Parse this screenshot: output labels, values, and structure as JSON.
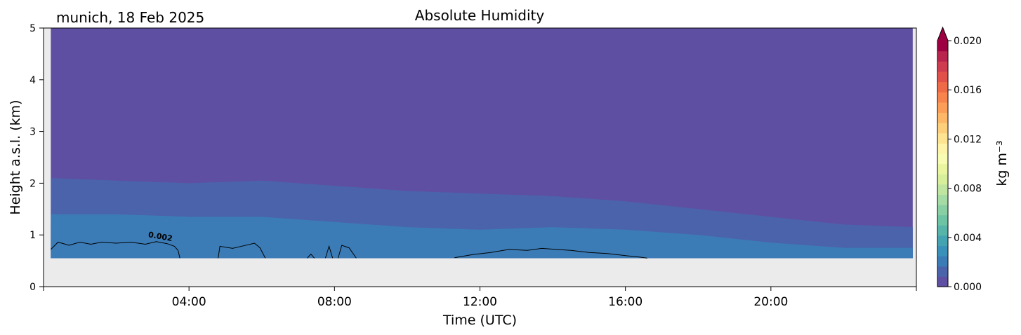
{
  "header": {
    "station_label": "munich, 18 Feb 2025",
    "title": "Absolute Humidity"
  },
  "chart_data": {
    "type": "heatmap",
    "title": "Absolute Humidity",
    "xlabel": "Time (UTC)",
    "ylabel": "Height a.s.l. (km)",
    "xlim": [
      0,
      24
    ],
    "ylim": [
      0,
      5
    ],
    "x_ticks": [
      {
        "value": 4,
        "label": "04:00"
      },
      {
        "value": 8,
        "label": "08:00"
      },
      {
        "value": 12,
        "label": "12:00"
      },
      {
        "value": 16,
        "label": "16:00"
      },
      {
        "value": 20,
        "label": "20:00"
      }
    ],
    "y_ticks": [
      {
        "value": 0,
        "label": "0"
      },
      {
        "value": 1,
        "label": "1"
      },
      {
        "value": 2,
        "label": "2"
      },
      {
        "value": 3,
        "label": "3"
      },
      {
        "value": 4,
        "label": "4"
      },
      {
        "value": 5,
        "label": "5"
      }
    ],
    "data_start_height_km": 0.55,
    "no_data_color": "#ebebeb",
    "fill_levels": [
      {
        "name": "0.000-0.001",
        "color": "#5e4fa2",
        "upper_boundary_km": {
          "x": [
            0.2,
            2,
            4,
            6,
            8,
            10,
            12,
            14,
            16,
            18,
            20,
            22,
            24
          ],
          "y": [
            2.1,
            2.05,
            2.0,
            2.05,
            1.95,
            1.85,
            1.8,
            1.75,
            1.65,
            1.5,
            1.35,
            1.2,
            1.15
          ]
        }
      },
      {
        "name": "0.001-0.002",
        "color": "#4b63ab",
        "upper_boundary_km": {
          "x": [
            0.2,
            2,
            4,
            6,
            8,
            10,
            12,
            14,
            16,
            18,
            20,
            22,
            24
          ],
          "y": [
            1.4,
            1.4,
            1.35,
            1.35,
            1.25,
            1.15,
            1.1,
            1.15,
            1.1,
            1.0,
            0.85,
            0.75,
            0.75
          ]
        }
      },
      {
        "name": "0.002-0.003",
        "color": "#3b7cb7",
        "upper_boundary_km": {
          "x": [
            0.2,
            2,
            4,
            6,
            8,
            10,
            12,
            14,
            16,
            18,
            20,
            22,
            24
          ],
          "y": [
            0.75,
            0.75,
            0.7,
            0.65,
            0.62,
            0.6,
            0.6,
            0.7,
            0.68,
            0.6,
            0.58,
            0.56,
            0.56
          ]
        }
      }
    ],
    "contours": [
      {
        "level": 0.002,
        "label": "0.002",
        "label_position": {
          "x": 3.2,
          "y": 0.92
        },
        "lines": [
          {
            "x": [
              0.2,
              0.4,
              0.7,
              1.0,
              1.3,
              1.6,
              2.0,
              2.4,
              2.8,
              3.1,
              3.4,
              3.6,
              3.7,
              3.75
            ],
            "y": [
              0.72,
              0.86,
              0.8,
              0.86,
              0.82,
              0.86,
              0.84,
              0.86,
              0.82,
              0.87,
              0.83,
              0.78,
              0.7,
              0.55
            ]
          },
          {
            "x": [
              4.8,
              4.85,
              5.2,
              5.5,
              5.8,
              5.95,
              6.1
            ],
            "y": [
              0.55,
              0.78,
              0.74,
              0.79,
              0.84,
              0.75,
              0.55
            ]
          },
          {
            "x": [
              7.25,
              7.35,
              7.45
            ],
            "y": [
              0.55,
              0.63,
              0.55
            ]
          },
          {
            "x": [
              7.75,
              7.85,
              7.95
            ],
            "y": [
              0.55,
              0.78,
              0.55
            ]
          },
          {
            "x": [
              8.1,
              8.2,
              8.4,
              8.6
            ],
            "y": [
              0.55,
              0.8,
              0.75,
              0.55
            ]
          },
          {
            "x": [
              11.3,
              11.8,
              12.3,
              12.8,
              13.3,
              13.7,
              14.1,
              14.5,
              15.0,
              15.5,
              16.0,
              16.4,
              16.6
            ],
            "y": [
              0.56,
              0.62,
              0.66,
              0.72,
              0.7,
              0.74,
              0.72,
              0.7,
              0.66,
              0.64,
              0.6,
              0.57,
              0.55
            ]
          }
        ]
      }
    ],
    "colorbar": {
      "label": "kg m⁻³",
      "min": 0.0,
      "max": 0.02,
      "extend": "max",
      "ticks": [
        {
          "value": 0.0,
          "label": "0.000"
        },
        {
          "value": 0.004,
          "label": "0.004"
        },
        {
          "value": 0.008,
          "label": "0.008"
        },
        {
          "value": 0.012,
          "label": "0.012"
        },
        {
          "value": 0.016,
          "label": "0.016"
        },
        {
          "value": 0.02,
          "label": "0.020"
        }
      ],
      "colors": [
        "#5e4fa2",
        "#4b63ab",
        "#3b7cb7",
        "#3990b9",
        "#44a3b1",
        "#56b4a9",
        "#6cc4a4",
        "#88cfa4",
        "#a5dba4",
        "#bfe5a0",
        "#d7ef9b",
        "#eaf69f",
        "#f8fbb2",
        "#fef3a9",
        "#fee391",
        "#fdcf7b",
        "#fdb767",
        "#fc9e57",
        "#f7834d",
        "#ef6a47",
        "#e1514a",
        "#cf3c4f",
        "#b8244d",
        "#9e0142"
      ]
    }
  }
}
